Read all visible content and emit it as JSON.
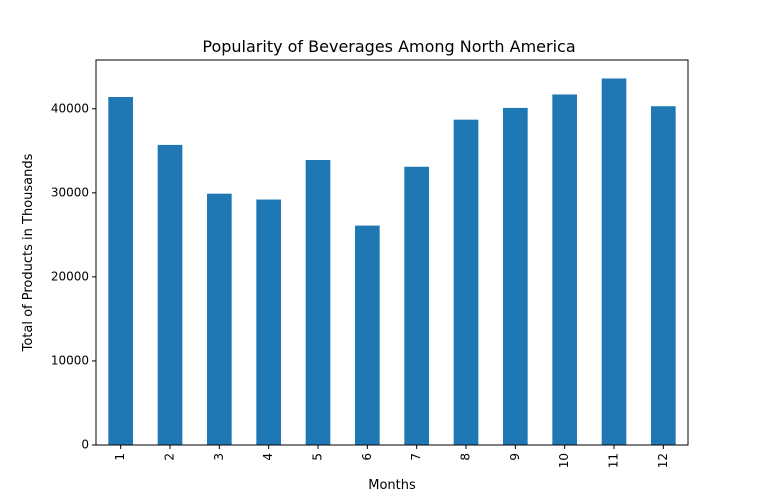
{
  "chart_data": {
    "type": "bar",
    "title": "Popularity of Beverages Among  North America",
    "xlabel": "Months",
    "ylabel": "Total of Products in Thousands",
    "categories": [
      "1",
      "2",
      "3",
      "4",
      "5",
      "6",
      "7",
      "8",
      "9",
      "10",
      "11",
      "12"
    ],
    "values": [
      41400,
      35700,
      29900,
      29200,
      33900,
      26100,
      33100,
      38700,
      40100,
      41700,
      43600,
      40300
    ],
    "ylim": [
      0,
      45800
    ],
    "yticks": [
      0,
      10000,
      20000,
      30000,
      40000
    ],
    "color": "#1f77b4",
    "grid": false,
    "legend": "none"
  }
}
